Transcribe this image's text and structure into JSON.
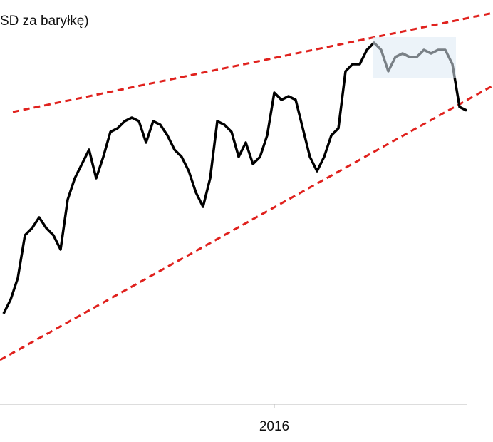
{
  "chart_data": {
    "type": "line",
    "title": "SD za baryłkę)",
    "categories": [
      null,
      null,
      null,
      null,
      null,
      null,
      null,
      null,
      null,
      null,
      null,
      null,
      null,
      null,
      null,
      null,
      null,
      null,
      null,
      null,
      null,
      null,
      null,
      null,
      null,
      null,
      null,
      null,
      null,
      null,
      null,
      null,
      null,
      null,
      null,
      null,
      null,
      null,
      "2016",
      null,
      null,
      null,
      null,
      null,
      null,
      null,
      null,
      null,
      null,
      null,
      null,
      null,
      null,
      null,
      null,
      null,
      null,
      null,
      null,
      null,
      null,
      null,
      null,
      null,
      null,
      null
    ],
    "values": [
      127,
      147,
      177,
      237,
      247,
      262,
      247,
      237,
      217,
      287,
      317,
      337,
      357,
      317,
      347,
      382,
      387,
      397,
      402,
      397,
      367,
      397,
      392,
      377,
      357,
      347,
      327,
      297,
      277,
      317,
      397,
      392,
      382,
      347,
      367,
      337,
      347,
      377,
      437,
      427,
      432,
      427,
      387,
      347,
      327,
      347,
      377,
      387,
      467,
      477,
      477,
      497,
      507,
      497,
      467,
      487,
      492,
      487,
      487,
      497,
      492,
      497,
      497,
      477,
      417,
      412
    ],
    "color": "#000000",
    "ylim": [
      0,
      567
    ]
  }
}
